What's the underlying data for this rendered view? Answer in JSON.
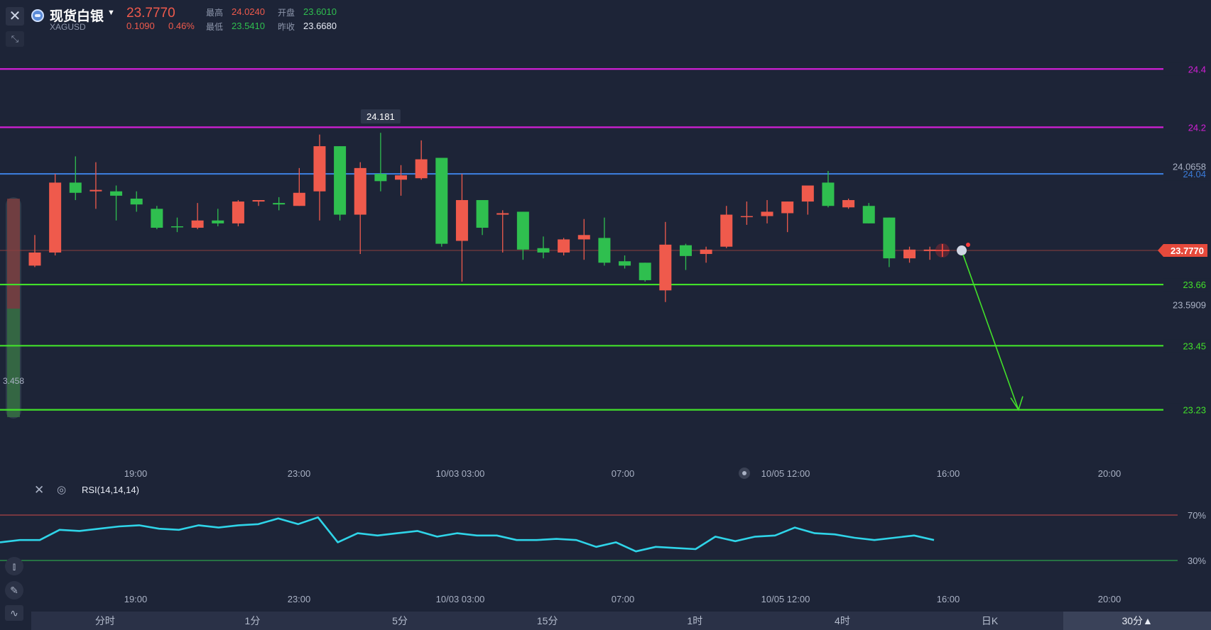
{
  "header": {
    "symbol_name": "现货白银",
    "symbol_code": "XAGUSD",
    "price": "23.7770",
    "change": "0.1090",
    "change_pct": "0.46%",
    "stats": {
      "high_label": "最高",
      "high": "24.0240",
      "open_label": "开盘",
      "open": "23.6010",
      "low_label": "最低",
      "low": "23.5410",
      "prev_close_label": "昨收",
      "prev_close": "23.6680"
    }
  },
  "colors": {
    "background": "#1d2437",
    "up": "#ef5a4c",
    "down": "#2fbf4f",
    "magenta_line": "#d21fd6",
    "blue_line": "#3b7bd8",
    "green_line": "#42e02a",
    "rsi_line": "#2fd4e8"
  },
  "price_chart": {
    "ylim": [
      23.1,
      24.52
    ],
    "price_lines": [
      {
        "value": 24.4,
        "label": "24.4",
        "color": "#d21fd6"
      },
      {
        "value": 24.2,
        "label": "24.2",
        "color": "#d21fd6"
      },
      {
        "value": 24.04,
        "label": "24.04",
        "color": "#3b7bd8"
      },
      {
        "value": 23.66,
        "label": "23.66",
        "color": "#42e02a"
      },
      {
        "value": 23.45,
        "label": "23.45",
        "color": "#42e02a"
      },
      {
        "value": 23.23,
        "label": "23.23",
        "color": "#42e02a"
      }
    ],
    "axis_labels": [
      {
        "value": 24.0658,
        "label": "24.0658"
      },
      {
        "value": 23.5909,
        "label": "23.5909"
      }
    ],
    "current_price": {
      "value": 23.777,
      "label": "23.7770"
    },
    "max_marker": {
      "value": 24.181,
      "label": "24.181"
    },
    "left_label": "3.458",
    "time_ticks": [
      "19:00",
      "23:00",
      "10/03 03:00",
      "07:00",
      "10/05 12:00",
      "16:00",
      "20:00"
    ],
    "candles": [
      [
        23.725,
        23.77,
        23.72,
        23.83
      ],
      [
        23.77,
        24.01,
        23.76,
        24.04
      ],
      [
        24.01,
        23.975,
        23.95,
        24.1
      ],
      [
        23.98,
        23.985,
        23.92,
        24.08
      ],
      [
        23.98,
        23.965,
        23.88,
        24.0
      ],
      [
        23.955,
        23.935,
        23.91,
        23.98
      ],
      [
        23.92,
        23.855,
        23.85,
        23.93
      ],
      [
        23.86,
        23.857,
        23.84,
        23.89
      ],
      [
        23.855,
        23.88,
        23.85,
        23.94
      ],
      [
        23.88,
        23.87,
        23.86,
        23.92
      ],
      [
        23.87,
        23.945,
        23.86,
        23.95
      ],
      [
        23.945,
        23.95,
        23.93,
        23.95
      ],
      [
        23.94,
        23.935,
        23.915,
        23.96
      ],
      [
        23.93,
        23.975,
        23.93,
        24.06
      ],
      [
        23.98,
        24.135,
        23.88,
        24.175
      ],
      [
        24.135,
        23.9,
        23.88,
        24.135
      ],
      [
        23.9,
        24.06,
        23.765,
        24.08
      ],
      [
        24.04,
        24.015,
        23.98,
        24.181
      ],
      [
        24.02,
        24.035,
        23.965,
        24.07
      ],
      [
        24.025,
        24.09,
        24.02,
        24.155
      ],
      [
        24.095,
        23.8,
        23.79,
        24.095
      ],
      [
        23.81,
        23.95,
        23.67,
        24.04
      ],
      [
        23.95,
        23.855,
        23.83,
        23.95
      ],
      [
        23.9,
        23.905,
        23.77,
        23.915
      ],
      [
        23.91,
        23.78,
        23.745,
        23.91
      ],
      [
        23.785,
        23.77,
        23.75,
        23.825
      ],
      [
        23.77,
        23.815,
        23.76,
        23.82
      ],
      [
        23.815,
        23.83,
        23.745,
        23.885
      ],
      [
        23.82,
        23.735,
        23.725,
        23.89
      ],
      [
        23.74,
        23.725,
        23.715,
        23.76
      ],
      [
        23.735,
        23.675,
        23.67,
        23.735
      ],
      [
        23.64,
        23.797,
        23.6,
        23.875
      ],
      [
        23.795,
        23.758,
        23.71,
        23.8
      ],
      [
        23.765,
        23.78,
        23.735,
        23.79
      ],
      [
        23.79,
        23.9,
        23.785,
        23.93
      ],
      [
        23.895,
        23.895,
        23.865,
        23.945
      ],
      [
        23.895,
        23.91,
        23.87,
        23.95
      ],
      [
        23.905,
        23.945,
        23.84,
        23.945
      ],
      [
        23.945,
        24.0,
        23.9,
        24.0
      ],
      [
        24.01,
        23.93,
        23.925,
        24.05
      ],
      [
        23.925,
        23.95,
        23.92,
        23.955
      ],
      [
        23.93,
        23.87,
        23.87,
        23.94
      ],
      [
        23.89,
        23.75,
        23.72,
        23.89
      ],
      [
        23.75,
        23.78,
        23.735,
        23.79
      ],
      [
        23.775,
        23.78,
        23.745,
        23.79
      ]
    ]
  },
  "rsi": {
    "label": "RSI(14,14,14)",
    "upper_label": "70%",
    "lower_label": "30%",
    "ylim": [
      30,
      70
    ],
    "values": [
      46,
      48,
      48,
      57,
      56,
      58,
      60,
      61,
      58,
      57,
      61,
      59,
      61,
      62,
      67,
      62,
      68,
      46,
      54,
      52,
      54,
      56,
      51,
      54,
      52,
      52,
      48,
      48,
      49,
      48,
      42,
      46,
      38,
      42,
      41,
      40,
      51,
      47,
      51,
      52,
      59,
      54,
      53,
      50,
      48,
      50,
      52,
      48
    ],
    "time_ticks": [
      "19:00",
      "23:00",
      "10/03 03:00",
      "07:00",
      "10/05 12:00",
      "16:00",
      "20:00"
    ]
  },
  "periods": [
    "分时",
    "1分",
    "5分",
    "15分",
    "1时",
    "4时",
    "日K",
    "30分▲"
  ],
  "active_period": "30分▲"
}
